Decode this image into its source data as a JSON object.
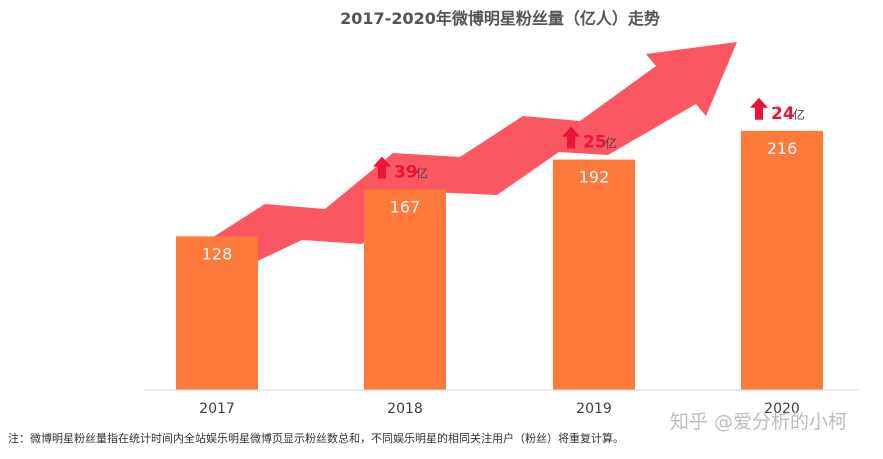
{
  "chart_data": {
    "type": "bar",
    "title": "2017-2020年微博明星粉丝量（亿人）走势",
    "categories": [
      "2017",
      "2018",
      "2019",
      "2020"
    ],
    "values": [
      128,
      167,
      192,
      216
    ],
    "ylim": [
      0,
      230
    ],
    "grid": false,
    "legend": "none",
    "annotations": [
      {
        "category": "2018",
        "value": "39",
        "unit": "亿"
      },
      {
        "category": "2019",
        "value": "25",
        "unit": "亿"
      },
      {
        "category": "2020",
        "value": "24",
        "unit": "亿"
      }
    ],
    "trend_arrow": "up",
    "colors": {
      "bar": "#fd7a3a",
      "bar_label": "#ffffff",
      "trend_arrow": "#fb5762",
      "growth_arrow": "#e8163b",
      "growth_number": "#e8163b",
      "axis": "#d9d9d9",
      "title": "#555555"
    }
  },
  "footnote": "注：微博明星粉丝量指在统计时间内全站娱乐明星微博页显示粉丝数总和，不同娱乐明星的相同关注用户（粉丝）将重复计算。",
  "watermark": "知乎 @爱分析的小柯"
}
